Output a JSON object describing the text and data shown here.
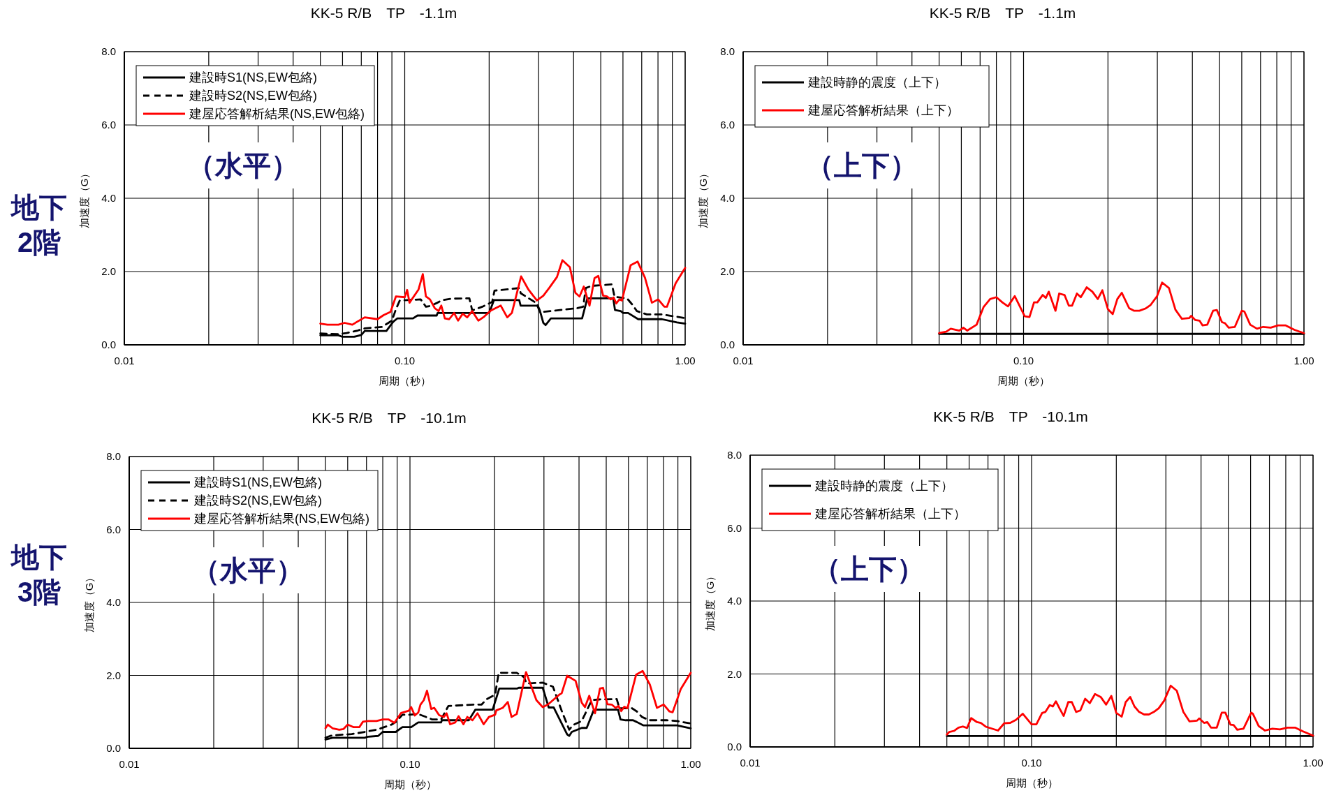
{
  "chart_data": [
    {
      "type": "line",
      "title": "KK-5 R/B　TP　-1.1m",
      "xlabel": "周期（秒）",
      "ylabel": "加速度（G）",
      "log": "x",
      "grid": true,
      "legend": "top left",
      "xlim": [
        0.01,
        1
      ],
      "ylim": [
        0,
        8
      ],
      "xticks": [
        {
          "value": 0.01,
          "label": "0.01"
        },
        {
          "value": 0.02,
          "label": null
        },
        {
          "value": 0.03,
          "label": null
        },
        {
          "value": 0.04,
          "label": null
        },
        {
          "value": 0.05,
          "label": null
        },
        {
          "value": 0.06,
          "label": null
        },
        {
          "value": 0.07,
          "label": null
        },
        {
          "value": 0.08,
          "label": null
        },
        {
          "value": 0.09,
          "label": null
        },
        {
          "value": 0.1,
          "label": "0.10"
        },
        {
          "value": 0.2,
          "label": null
        },
        {
          "value": 0.3,
          "label": null
        },
        {
          "value": 0.4,
          "label": null
        },
        {
          "value": 0.5,
          "label": null
        },
        {
          "value": 0.6,
          "label": null
        },
        {
          "value": 0.7,
          "label": null
        },
        {
          "value": 0.8,
          "label": null
        },
        {
          "value": 0.9,
          "label": null
        },
        {
          "value": 1,
          "label": "1.00"
        }
      ],
      "yticks": [
        {
          "value": 0,
          "label": "0.0"
        },
        {
          "value": 2,
          "label": "2.0"
        },
        {
          "value": 4,
          "label": "4.0"
        },
        {
          "value": 6,
          "label": "6.0"
        },
        {
          "value": 8,
          "label": "8.0"
        }
      ],
      "annotations": [
        "（水平）",
        "地下\n2階"
      ],
      "series": [
        {
          "name": "建設時S1(NS,EW包絡)",
          "color": "#000000",
          "line_style": "solid",
          "x": [
            0.05,
            0.058,
            0.06,
            0.066,
            0.07,
            0.072,
            0.086,
            0.091,
            0.094,
            0.107,
            0.111,
            0.13,
            0.131,
            0.2,
            0.208,
            0.256,
            0.259,
            0.297,
            0.305,
            0.312,
            0.318,
            0.332,
            0.429,
            0.448,
            0.554,
            0.562,
            0.589,
            0.601,
            0.626,
            0.68,
            0.826,
            0.935,
            1
          ],
          "values": [
            0.26,
            0.26,
            0.22,
            0.22,
            0.27,
            0.38,
            0.38,
            0.63,
            0.72,
            0.72,
            0.8,
            0.8,
            0.87,
            0.87,
            1.22,
            1.22,
            1.07,
            1.07,
            0.87,
            0.6,
            0.54,
            0.72,
            0.72,
            1.27,
            1.27,
            0.95,
            0.92,
            0.87,
            0.87,
            0.7,
            0.7,
            0.61,
            0.58
          ]
        },
        {
          "name": "建設時S2(NS,EW包絡)",
          "color": "#000000",
          "line_style": "dashed",
          "x": [
            0.05,
            0.058,
            0.062,
            0.068,
            0.072,
            0.083,
            0.09,
            0.093,
            0.096,
            0.102,
            0.114,
            0.119,
            0.123,
            0.13,
            0.136,
            0.147,
            0.17,
            0.174,
            0.189,
            0.205,
            0.209,
            0.257,
            0.259,
            0.296,
            0.305,
            0.349,
            0.411,
            0.433,
            0.442,
            0.465,
            0.548,
            0.56,
            0.62,
            0.646,
            0.673,
            0.73,
            0.826,
            1
          ],
          "values": [
            0.31,
            0.29,
            0.32,
            0.39,
            0.45,
            0.49,
            0.66,
            0.97,
            1.21,
            1.22,
            1.24,
            1.04,
            1.06,
            1.14,
            1.22,
            1.26,
            1.27,
            0.94,
            1.04,
            1.17,
            1.48,
            1.55,
            1.41,
            1.13,
            0.89,
            0.94,
            1.0,
            1.04,
            1.55,
            1.61,
            1.65,
            1.31,
            1.27,
            1.11,
            0.92,
            0.83,
            0.83,
            0.73
          ]
        },
        {
          "name": "建屋応答解析結果(NS,EW包絡)",
          "color": "#ff0000",
          "line_style": "solid",
          "x": [
            0.05,
            0.053,
            0.058,
            0.061,
            0.065,
            0.072,
            0.08,
            0.084,
            0.089,
            0.093,
            0.1,
            0.102,
            0.104,
            0.112,
            0.116,
            0.119,
            0.123,
            0.128,
            0.132,
            0.135,
            0.139,
            0.144,
            0.15,
            0.155,
            0.161,
            0.167,
            0.174,
            0.183,
            0.192,
            0.203,
            0.22,
            0.232,
            0.241,
            0.26,
            0.276,
            0.296,
            0.312,
            0.328,
            0.349,
            0.365,
            0.388,
            0.406,
            0.42,
            0.435,
            0.456,
            0.475,
            0.49,
            0.51,
            0.526,
            0.543,
            0.556,
            0.568,
            0.583,
            0.595,
            0.639,
            0.677,
            0.719,
            0.761,
            0.801,
            0.843,
            0.861,
            0.925,
            1
          ],
          "values": [
            0.58,
            0.55,
            0.55,
            0.6,
            0.55,
            0.75,
            0.7,
            0.81,
            0.9,
            1.32,
            1.3,
            1.5,
            1.15,
            1.51,
            1.93,
            1.32,
            1.24,
            1.0,
            0.92,
            1.07,
            0.72,
            0.7,
            0.87,
            0.66,
            0.85,
            0.75,
            0.92,
            0.66,
            0.77,
            0.94,
            1.07,
            0.75,
            0.87,
            1.87,
            1.51,
            1.21,
            1.34,
            1.56,
            1.85,
            2.31,
            2.12,
            1.42,
            1.32,
            1.59,
            1.07,
            1.82,
            1.88,
            1.34,
            1.32,
            1.24,
            1.29,
            1.13,
            1.24,
            1.21,
            2.17,
            2.27,
            1.83,
            1.15,
            1.24,
            1.04,
            1.04,
            1.68,
            2.1
          ]
        }
      ]
    },
    {
      "type": "line",
      "title": "KK-5 R/B　TP　-1.1m",
      "xlabel": "周期（秒）",
      "ylabel": "加速度（G）",
      "log": "x",
      "grid": true,
      "legend": "top left",
      "xlim": [
        0.01,
        1
      ],
      "ylim": [
        0,
        8
      ],
      "xticks": [
        {
          "value": 0.01,
          "label": "0.01"
        },
        {
          "value": 0.02,
          "label": null
        },
        {
          "value": 0.03,
          "label": null
        },
        {
          "value": 0.04,
          "label": null
        },
        {
          "value": 0.05,
          "label": null
        },
        {
          "value": 0.06,
          "label": null
        },
        {
          "value": 0.07,
          "label": null
        },
        {
          "value": 0.08,
          "label": null
        },
        {
          "value": 0.09,
          "label": null
        },
        {
          "value": 0.1,
          "label": "0.10"
        },
        {
          "value": 0.2,
          "label": null
        },
        {
          "value": 0.3,
          "label": null
        },
        {
          "value": 0.4,
          "label": null
        },
        {
          "value": 0.5,
          "label": null
        },
        {
          "value": 0.6,
          "label": null
        },
        {
          "value": 0.7,
          "label": null
        },
        {
          "value": 0.8,
          "label": null
        },
        {
          "value": 0.9,
          "label": null
        },
        {
          "value": 1,
          "label": "1.00"
        }
      ],
      "yticks": [
        {
          "value": 0,
          "label": "0.0"
        },
        {
          "value": 2,
          "label": "2.0"
        },
        {
          "value": 4,
          "label": "4.0"
        },
        {
          "value": 6,
          "label": "6.0"
        },
        {
          "value": 8,
          "label": "8.0"
        }
      ],
      "annotations": [
        "（上下）"
      ],
      "series": [
        {
          "name": "建設時静的震度（上下）",
          "color": "#000000",
          "line_style": "solid",
          "x": [
            0.05,
            1
          ],
          "values": [
            0.3,
            0.3
          ]
        },
        {
          "name": "建屋応答解析結果（上下）",
          "color": "#ff0000",
          "line_style": "solid",
          "x": [
            0.05,
            0.053,
            0.055,
            0.059,
            0.061,
            0.063,
            0.068,
            0.072,
            0.076,
            0.08,
            0.084,
            0.088,
            0.093,
            0.101,
            0.105,
            0.109,
            0.112,
            0.117,
            0.12,
            0.123,
            0.13,
            0.134,
            0.14,
            0.145,
            0.149,
            0.155,
            0.16,
            0.168,
            0.176,
            0.184,
            0.191,
            0.2,
            0.208,
            0.216,
            0.224,
            0.238,
            0.248,
            0.259,
            0.272,
            0.284,
            0.299,
            0.312,
            0.33,
            0.348,
            0.367,
            0.39,
            0.396,
            0.409,
            0.424,
            0.435,
            0.452,
            0.474,
            0.489,
            0.51,
            0.523,
            0.539,
            0.567,
            0.6,
            0.613,
            0.643,
            0.68,
            0.715,
            0.761,
            0.809,
            0.861,
            0.925,
            1
          ],
          "values": [
            0.32,
            0.36,
            0.44,
            0.39,
            0.47,
            0.39,
            0.55,
            1.03,
            1.25,
            1.3,
            1.16,
            1.05,
            1.33,
            0.78,
            0.76,
            1.16,
            1.16,
            1.36,
            1.28,
            1.45,
            0.93,
            1.4,
            1.36,
            1.07,
            1.07,
            1.4,
            1.3,
            1.57,
            1.45,
            1.25,
            1.49,
            0.97,
            0.84,
            1.25,
            1.42,
            1.0,
            0.93,
            0.93,
            0.99,
            1.09,
            1.32,
            1.7,
            1.55,
            0.96,
            0.71,
            0.73,
            0.79,
            0.68,
            0.66,
            0.53,
            0.55,
            0.93,
            0.95,
            0.62,
            0.59,
            0.47,
            0.49,
            0.93,
            0.91,
            0.55,
            0.44,
            0.49,
            0.47,
            0.53,
            0.53,
            0.41,
            0.32
          ]
        }
      ]
    },
    {
      "type": "line",
      "title": "KK-5 R/B　TP　-10.1m",
      "xlabel": "周期（秒）",
      "ylabel": "加速度（G）",
      "log": "x",
      "grid": true,
      "legend": "top left",
      "xlim": [
        0.01,
        1
      ],
      "ylim": [
        0,
        8
      ],
      "xticks": [
        {
          "value": 0.01,
          "label": "0.01"
        },
        {
          "value": 0.02,
          "label": null
        },
        {
          "value": 0.03,
          "label": null
        },
        {
          "value": 0.04,
          "label": null
        },
        {
          "value": 0.05,
          "label": null
        },
        {
          "value": 0.06,
          "label": null
        },
        {
          "value": 0.07,
          "label": null
        },
        {
          "value": 0.08,
          "label": null
        },
        {
          "value": 0.09,
          "label": null
        },
        {
          "value": 0.1,
          "label": "0.10"
        },
        {
          "value": 0.2,
          "label": null
        },
        {
          "value": 0.3,
          "label": null
        },
        {
          "value": 0.4,
          "label": null
        },
        {
          "value": 0.5,
          "label": null
        },
        {
          "value": 0.6,
          "label": null
        },
        {
          "value": 0.7,
          "label": null
        },
        {
          "value": 0.8,
          "label": null
        },
        {
          "value": 0.9,
          "label": null
        },
        {
          "value": 1,
          "label": "1.00"
        }
      ],
      "yticks": [
        {
          "value": 0,
          "label": "0.0"
        },
        {
          "value": 2,
          "label": "2.0"
        },
        {
          "value": 4,
          "label": "4.0"
        },
        {
          "value": 6,
          "label": "6.0"
        },
        {
          "value": 8,
          "label": "8.0"
        }
      ],
      "annotations": [
        "（水平）",
        "地下\n3階"
      ],
      "series": [
        {
          "name": "建設時S1(NS,EW包絡)",
          "color": "#000000",
          "line_style": "solid",
          "x": [
            0.05,
            0.053,
            0.069,
            0.071,
            0.077,
            0.08,
            0.089,
            0.094,
            0.101,
            0.107,
            0.129,
            0.13,
            0.162,
            0.171,
            0.197,
            0.208,
            0.241,
            0.244,
            0.297,
            0.312,
            0.325,
            0.363,
            0.369,
            0.377,
            0.409,
            0.426,
            0.452,
            0.551,
            0.562,
            0.586,
            0.623,
            0.643,
            0.677,
            0.893,
            1
          ],
          "values": [
            0.24,
            0.29,
            0.29,
            0.32,
            0.34,
            0.45,
            0.45,
            0.58,
            0.58,
            0.71,
            0.71,
            0.77,
            0.77,
            1.06,
            1.06,
            1.64,
            1.64,
            1.66,
            1.66,
            1.12,
            1.12,
            0.38,
            0.34,
            0.45,
            0.56,
            0.56,
            1.06,
            1.06,
            0.79,
            0.77,
            0.77,
            0.72,
            0.63,
            0.63,
            0.55
          ]
        },
        {
          "name": "建設時S2(NS,EW包絡)",
          "color": "#000000",
          "line_style": "dashed",
          "x": [
            0.05,
            0.052,
            0.054,
            0.062,
            0.069,
            0.076,
            0.081,
            0.086,
            0.089,
            0.094,
            0.099,
            0.107,
            0.114,
            0.12,
            0.129,
            0.137,
            0.169,
            0.18,
            0.187,
            0.201,
            0.207,
            0.24,
            0.255,
            0.26,
            0.297,
            0.323,
            0.347,
            0.369,
            0.381,
            0.409,
            0.444,
            0.472,
            0.545,
            0.557,
            0.617,
            0.643,
            0.67,
            0.712,
            0.823,
            0.893,
            1
          ],
          "values": [
            0.29,
            0.34,
            0.36,
            0.39,
            0.45,
            0.51,
            0.58,
            0.65,
            0.72,
            0.92,
            0.92,
            0.94,
            0.86,
            0.79,
            0.79,
            1.16,
            1.2,
            1.2,
            1.34,
            1.47,
            2.07,
            2.07,
            1.95,
            1.78,
            1.8,
            1.69,
            1.03,
            0.51,
            0.64,
            0.75,
            1.32,
            1.34,
            1.35,
            1.1,
            1.1,
            1.01,
            0.86,
            0.77,
            0.77,
            0.75,
            0.68
          ]
        },
        {
          "name": "建屋応答解析結果(NS,EW包絡)",
          "color": "#ff0000",
          "line_style": "solid",
          "x": [
            0.05,
            0.051,
            0.053,
            0.056,
            0.058,
            0.06,
            0.063,
            0.066,
            0.068,
            0.071,
            0.076,
            0.08,
            0.084,
            0.088,
            0.093,
            0.099,
            0.101,
            0.104,
            0.107,
            0.109,
            0.112,
            0.115,
            0.119,
            0.122,
            0.127,
            0.132,
            0.135,
            0.139,
            0.145,
            0.149,
            0.155,
            0.16,
            0.167,
            0.174,
            0.183,
            0.191,
            0.201,
            0.203,
            0.214,
            0.223,
            0.23,
            0.24,
            0.259,
            0.282,
            0.297,
            0.31,
            0.323,
            0.34,
            0.347,
            0.363,
            0.389,
            0.409,
            0.42,
            0.435,
            0.456,
            0.475,
            0.487,
            0.505,
            0.523,
            0.54,
            0.553,
            0.565,
            0.58,
            0.595,
            0.639,
            0.674,
            0.715,
            0.758,
            0.801,
            0.84,
            0.862,
            0.921,
            1
          ],
          "values": [
            0.55,
            0.65,
            0.55,
            0.51,
            0.53,
            0.65,
            0.58,
            0.58,
            0.73,
            0.75,
            0.75,
            0.79,
            0.79,
            0.7,
            0.97,
            1.03,
            1.13,
            0.9,
            0.98,
            1.2,
            1.32,
            1.58,
            1.08,
            1.11,
            0.91,
            0.86,
            0.96,
            0.66,
            0.71,
            0.88,
            0.66,
            0.86,
            0.77,
            0.96,
            0.66,
            0.86,
            0.92,
            1.04,
            1.11,
            1.27,
            0.86,
            0.94,
            2.09,
            1.32,
            1.13,
            1.2,
            1.32,
            1.47,
            1.51,
            1.99,
            1.85,
            1.25,
            1.13,
            1.44,
            0.96,
            1.64,
            1.66,
            1.21,
            1.2,
            1.11,
            1.16,
            1.02,
            1.14,
            1.1,
            2.02,
            2.12,
            1.75,
            1.11,
            1.2,
            1.01,
            0.99,
            1.62,
            2.07
          ]
        }
      ]
    },
    {
      "type": "line",
      "title": "KK-5 R/B　TP　-10.1m",
      "xlabel": "周期（秒）",
      "ylabel": "加速度（G）",
      "log": "x",
      "grid": true,
      "legend": "top left",
      "xlim": [
        0.01,
        1
      ],
      "ylim": [
        0,
        8
      ],
      "xticks": [
        {
          "value": 0.01,
          "label": "0.01"
        },
        {
          "value": 0.02,
          "label": null
        },
        {
          "value": 0.03,
          "label": null
        },
        {
          "value": 0.04,
          "label": null
        },
        {
          "value": 0.05,
          "label": null
        },
        {
          "value": 0.06,
          "label": null
        },
        {
          "value": 0.07,
          "label": null
        },
        {
          "value": 0.08,
          "label": null
        },
        {
          "value": 0.09,
          "label": null
        },
        {
          "value": 0.1,
          "label": "0.10"
        },
        {
          "value": 0.2,
          "label": null
        },
        {
          "value": 0.3,
          "label": null
        },
        {
          "value": 0.4,
          "label": null
        },
        {
          "value": 0.5,
          "label": null
        },
        {
          "value": 0.6,
          "label": null
        },
        {
          "value": 0.7,
          "label": null
        },
        {
          "value": 0.8,
          "label": null
        },
        {
          "value": 0.9,
          "label": null
        },
        {
          "value": 1,
          "label": "1.00"
        }
      ],
      "yticks": [
        {
          "value": 0,
          "label": "0.0"
        },
        {
          "value": 2,
          "label": "2.0"
        },
        {
          "value": 4,
          "label": "4.0"
        },
        {
          "value": 6,
          "label": "6.0"
        },
        {
          "value": 8,
          "label": "8.0"
        }
      ],
      "annotations": [
        "（上下）"
      ],
      "series": [
        {
          "name": "建設時静的震度（上下）",
          "color": "#000000",
          "line_style": "solid",
          "x": [
            0.05,
            1
          ],
          "values": [
            0.3,
            0.3
          ]
        },
        {
          "name": "建屋応答解析結果（上下）",
          "color": "#ff0000",
          "line_style": "solid",
          "x": [
            0.05,
            0.051,
            0.053,
            0.055,
            0.057,
            0.059,
            0.061,
            0.064,
            0.066,
            0.069,
            0.076,
            0.08,
            0.084,
            0.088,
            0.093,
            0.1,
            0.104,
            0.109,
            0.112,
            0.116,
            0.119,
            0.122,
            0.126,
            0.13,
            0.135,
            0.139,
            0.144,
            0.149,
            0.155,
            0.161,
            0.168,
            0.176,
            0.184,
            0.192,
            0.2,
            0.209,
            0.216,
            0.224,
            0.232,
            0.241,
            0.251,
            0.261,
            0.272,
            0.283,
            0.296,
            0.312,
            0.328,
            0.346,
            0.364,
            0.387,
            0.394,
            0.41,
            0.421,
            0.434,
            0.455,
            0.474,
            0.488,
            0.509,
            0.522,
            0.538,
            0.566,
            0.603,
            0.611,
            0.641,
            0.675,
            0.717,
            0.763,
            0.811,
            0.863,
            0.918,
            1
          ],
          "values": [
            0.34,
            0.41,
            0.44,
            0.53,
            0.56,
            0.52,
            0.79,
            0.68,
            0.66,
            0.55,
            0.45,
            0.65,
            0.66,
            0.74,
            0.91,
            0.62,
            0.62,
            0.93,
            0.96,
            1.15,
            1.11,
            1.25,
            1.04,
            0.85,
            1.23,
            1.23,
            0.96,
            1.0,
            1.32,
            1.2,
            1.45,
            1.37,
            1.16,
            1.4,
            0.93,
            0.83,
            1.23,
            1.37,
            1.11,
            0.96,
            0.89,
            0.89,
            0.96,
            1.06,
            1.27,
            1.68,
            1.54,
            0.96,
            0.7,
            0.72,
            0.78,
            0.66,
            0.68,
            0.53,
            0.53,
            0.94,
            0.94,
            0.61,
            0.6,
            0.47,
            0.5,
            0.94,
            0.91,
            0.57,
            0.45,
            0.5,
            0.48,
            0.53,
            0.53,
            0.43,
            0.31
          ]
        }
      ]
    }
  ]
}
